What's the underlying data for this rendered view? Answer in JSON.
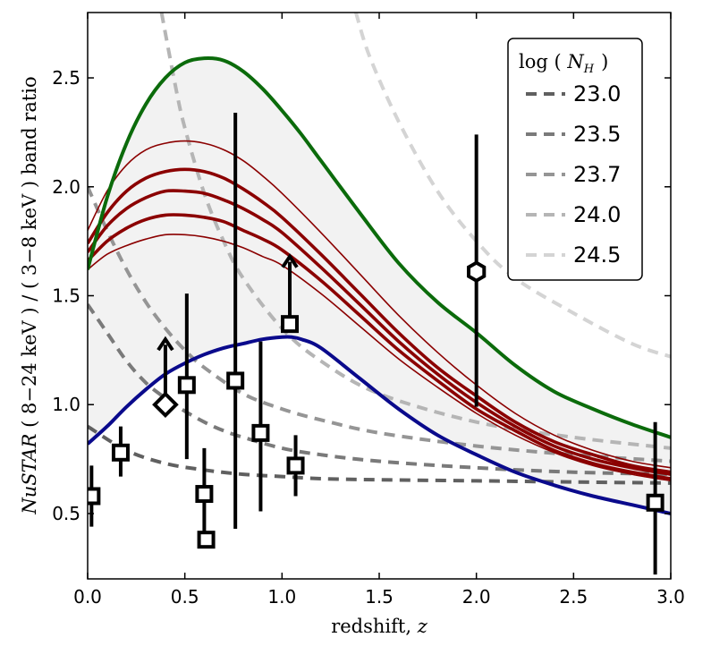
{
  "chart_data": {
    "type": "line",
    "xlabel": "redshift,",
    "xlabel_var": "z",
    "ylabel_prefix": "NuSTAR",
    "ylabel_rest": " ( 8−24 keV ) / ( 3−8 keV ) band ratio",
    "xlim": [
      0.0,
      3.0
    ],
    "ylim": [
      0.2,
      2.8
    ],
    "x_ticks": [
      "0.0",
      "0.5",
      "1.0",
      "1.5",
      "2.0",
      "2.5",
      "3.0"
    ],
    "y_ticks": [
      "0.5",
      "1.0",
      "1.5",
      "2.0",
      "2.5"
    ],
    "legend_title": "log (",
    "legend_title_var": "N",
    "legend_title_sub": "H",
    "legend_title_close": ")",
    "legend_position": "top-right",
    "colors": {
      "upper_envelope": "#0b6b0b",
      "lower_envelope": "#0a0a8c",
      "models": "#8b0000",
      "band_fill": "#f2f2f2",
      "points": "#000000"
    },
    "envelope_upper": {
      "name": "upper envelope",
      "x": [
        0.0,
        0.1,
        0.2,
        0.3,
        0.4,
        0.5,
        0.6,
        0.7,
        0.8,
        0.9,
        1.0,
        1.1,
        1.2,
        1.4,
        1.6,
        1.8,
        2.0,
        2.2,
        2.4,
        2.6,
        2.8,
        3.0
      ],
      "y": [
        1.62,
        1.95,
        2.2,
        2.38,
        2.5,
        2.57,
        2.59,
        2.58,
        2.53,
        2.45,
        2.35,
        2.24,
        2.12,
        1.88,
        1.65,
        1.47,
        1.33,
        1.18,
        1.06,
        0.98,
        0.91,
        0.85
      ]
    },
    "envelope_lower": {
      "name": "lower envelope",
      "x": [
        0.0,
        0.1,
        0.2,
        0.3,
        0.4,
        0.5,
        0.6,
        0.7,
        0.8,
        0.9,
        1.0,
        1.05,
        1.1,
        1.2,
        1.4,
        1.6,
        1.8,
        2.0,
        2.2,
        2.4,
        2.6,
        2.8,
        3.0
      ],
      "y": [
        0.82,
        0.9,
        0.99,
        1.07,
        1.14,
        1.19,
        1.23,
        1.26,
        1.28,
        1.3,
        1.31,
        1.31,
        1.3,
        1.26,
        1.12,
        0.98,
        0.86,
        0.77,
        0.69,
        0.63,
        0.58,
        0.54,
        0.5
      ]
    },
    "model_curves": [
      {
        "name": "model-1",
        "weight": "thin",
        "x": [
          0.0,
          0.1,
          0.2,
          0.3,
          0.4,
          0.5,
          0.6,
          0.7,
          0.8,
          0.9,
          1.0,
          1.2,
          1.4,
          1.6,
          1.8,
          2.0,
          2.2,
          2.4,
          2.6,
          2.8,
          3.0
        ],
        "y": [
          1.8,
          1.98,
          2.1,
          2.17,
          2.2,
          2.21,
          2.2,
          2.17,
          2.12,
          2.05,
          1.97,
          1.79,
          1.6,
          1.41,
          1.24,
          1.09,
          0.96,
          0.86,
          0.79,
          0.74,
          0.71
        ]
      },
      {
        "name": "model-2",
        "weight": "thick",
        "x": [
          0.0,
          0.1,
          0.2,
          0.3,
          0.4,
          0.5,
          0.6,
          0.7,
          0.8,
          0.9,
          1.0,
          1.2,
          1.4,
          1.6,
          1.8,
          2.0,
          2.2,
          2.4,
          2.6,
          2.8,
          3.0
        ],
        "y": [
          1.74,
          1.88,
          1.98,
          2.04,
          2.07,
          2.08,
          2.07,
          2.04,
          1.99,
          1.93,
          1.86,
          1.69,
          1.51,
          1.33,
          1.17,
          1.04,
          0.92,
          0.83,
          0.77,
          0.72,
          0.69
        ]
      },
      {
        "name": "model-3",
        "weight": "thick",
        "x": [
          0.0,
          0.1,
          0.2,
          0.3,
          0.4,
          0.5,
          0.6,
          0.7,
          0.8,
          0.9,
          1.0,
          1.2,
          1.4,
          1.6,
          1.8,
          2.0,
          2.2,
          2.4,
          2.6,
          2.8,
          3.0
        ],
        "y": [
          1.7,
          1.82,
          1.9,
          1.95,
          1.98,
          1.98,
          1.97,
          1.94,
          1.9,
          1.85,
          1.79,
          1.63,
          1.46,
          1.29,
          1.14,
          1.01,
          0.9,
          0.81,
          0.75,
          0.71,
          0.68
        ]
      },
      {
        "name": "model-4",
        "weight": "thick",
        "x": [
          0.0,
          0.1,
          0.2,
          0.3,
          0.4,
          0.5,
          0.6,
          0.7,
          0.8,
          0.9,
          1.0,
          1.2,
          1.4,
          1.6,
          1.8,
          2.0,
          2.2,
          2.4,
          2.6,
          2.8,
          3.0
        ],
        "y": [
          1.66,
          1.75,
          1.81,
          1.85,
          1.87,
          1.87,
          1.86,
          1.84,
          1.8,
          1.76,
          1.71,
          1.57,
          1.41,
          1.25,
          1.11,
          0.98,
          0.88,
          0.79,
          0.73,
          0.69,
          0.66
        ]
      },
      {
        "name": "model-5",
        "weight": "thin",
        "x": [
          0.0,
          0.1,
          0.2,
          0.3,
          0.4,
          0.5,
          0.6,
          0.7,
          0.8,
          0.9,
          1.0,
          1.2,
          1.4,
          1.6,
          1.8,
          2.0,
          2.2,
          2.4,
          2.6,
          2.8,
          3.0
        ],
        "y": [
          1.62,
          1.69,
          1.73,
          1.76,
          1.78,
          1.78,
          1.77,
          1.75,
          1.72,
          1.68,
          1.64,
          1.51,
          1.36,
          1.21,
          1.08,
          0.96,
          0.86,
          0.78,
          0.72,
          0.68,
          0.65
        ]
      }
    ],
    "series": [
      {
        "name": "23.0",
        "color": "#606060",
        "x": [
          0.0,
          0.2,
          0.4,
          0.6,
          0.8,
          1.0,
          1.2,
          1.5,
          2.0,
          2.5,
          3.0
        ],
        "y": [
          0.9,
          0.79,
          0.73,
          0.7,
          0.68,
          0.67,
          0.66,
          0.655,
          0.65,
          0.645,
          0.64
        ]
      },
      {
        "name": "23.5",
        "color": "#7a7a7a",
        "x": [
          0.0,
          0.1,
          0.2,
          0.3,
          0.4,
          0.5,
          0.6,
          0.7,
          0.8,
          1.0,
          1.2,
          1.5,
          2.0,
          2.5,
          3.0
        ],
        "y": [
          1.46,
          1.33,
          1.2,
          1.1,
          1.03,
          0.97,
          0.92,
          0.88,
          0.85,
          0.8,
          0.77,
          0.74,
          0.71,
          0.69,
          0.68
        ]
      },
      {
        "name": "23.7",
        "color": "#959595",
        "x": [
          0.0,
          0.1,
          0.2,
          0.3,
          0.4,
          0.5,
          0.6,
          0.8,
          1.0,
          1.2,
          1.5,
          2.0,
          2.5,
          3.0
        ],
        "y": [
          2.0,
          1.8,
          1.62,
          1.47,
          1.35,
          1.25,
          1.17,
          1.05,
          0.98,
          0.93,
          0.87,
          0.81,
          0.77,
          0.74
        ]
      },
      {
        "name": "24.0",
        "color": "#b5b5b5",
        "x": [
          0.38,
          0.45,
          0.5,
          0.6,
          0.7,
          0.8,
          1.0,
          1.2,
          1.5,
          2.0,
          2.5,
          3.0
        ],
        "y": [
          2.8,
          2.47,
          2.27,
          1.97,
          1.75,
          1.58,
          1.35,
          1.2,
          1.05,
          0.92,
          0.85,
          0.8
        ]
      },
      {
        "name": "24.5",
        "color": "#d4d4d4",
        "x": [
          1.38,
          1.45,
          1.6,
          1.8,
          2.0,
          2.2,
          2.5,
          2.8,
          3.0
        ],
        "y": [
          2.8,
          2.6,
          2.3,
          1.98,
          1.75,
          1.58,
          1.42,
          1.28,
          1.22
        ]
      }
    ],
    "data_points": [
      {
        "name": "point",
        "marker": "square",
        "x": 0.02,
        "y": 0.58,
        "yerr_low": 0.44,
        "yerr_high": 0.72
      },
      {
        "name": "point",
        "marker": "square",
        "x": 0.17,
        "y": 0.78,
        "yerr_low": 0.67,
        "yerr_high": 0.9
      },
      {
        "name": "point",
        "marker": "diamond",
        "x": 0.4,
        "y": 1.0,
        "lower_limit": true,
        "arrow_to": 1.3
      },
      {
        "name": "point",
        "marker": "square",
        "x": 0.51,
        "y": 1.09,
        "yerr_low": 0.75,
        "yerr_high": 1.51
      },
      {
        "name": "point",
        "marker": "square",
        "x": 0.6,
        "y": 0.59,
        "yerr_low": 0.4,
        "yerr_high": 0.8
      },
      {
        "name": "point",
        "marker": "square",
        "x": 0.61,
        "y": 0.38,
        "yerr_low": 0.38,
        "yerr_high": 0.38
      },
      {
        "name": "point",
        "marker": "square",
        "x": 0.76,
        "y": 1.11,
        "yerr_low": 0.43,
        "yerr_high": 2.34
      },
      {
        "name": "point",
        "marker": "square",
        "x": 0.89,
        "y": 0.87,
        "yerr_low": 0.51,
        "yerr_high": 1.29
      },
      {
        "name": "point",
        "marker": "square",
        "x": 1.04,
        "y": 1.37,
        "lower_limit": true,
        "arrow_to": 1.68
      },
      {
        "name": "point",
        "marker": "square",
        "x": 1.07,
        "y": 0.72,
        "yerr_low": 0.58,
        "yerr_high": 0.86
      },
      {
        "name": "point",
        "marker": "hexagon",
        "x": 2.0,
        "y": 1.61,
        "yerr_low": 0.99,
        "yerr_high": 2.24
      },
      {
        "name": "point",
        "marker": "square",
        "x": 2.92,
        "y": 0.55,
        "yerr_low": 0.22,
        "yerr_high": 0.92
      }
    ]
  }
}
